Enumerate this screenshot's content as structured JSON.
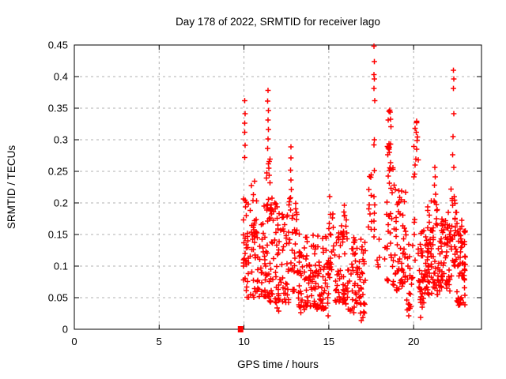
{
  "page": {
    "background": "#ffffff"
  },
  "chart_data": {
    "type": "scatter",
    "title": "Day 178 of 2022, SRMTID for receiver lago",
    "xlabel": "GPS time / hours",
    "ylabel": "SRMTID / TECUs",
    "xlim": [
      0,
      24
    ],
    "ylim": [
      0,
      0.45
    ],
    "xticks": [
      0,
      5,
      10,
      15,
      20
    ],
    "xtick_labels": [
      "0",
      "5",
      "10",
      "15",
      "20"
    ],
    "yticks": [
      0,
      0.05,
      0.1,
      0.15,
      0.2,
      0.25,
      0.3,
      0.35,
      0.4,
      0.45
    ],
    "ytick_labels": [
      "0",
      "0.05",
      "0.1",
      "0.15",
      "0.2",
      "0.25",
      "0.3",
      "0.35",
      "0.4",
      "0.45"
    ],
    "grid": true,
    "legend": "none",
    "marker": "plus",
    "marker_color": "#ff0000",
    "grid_color": "#b0b0b0",
    "axis_color": "#000000",
    "data_time_range_hours": [
      9.8,
      23.1
    ],
    "zero_point": {
      "x": 9.8,
      "y": 0.0
    },
    "points": [
      [
        10.04,
        0.362
      ],
      [
        10.06,
        0.341
      ],
      [
        10.05,
        0.326
      ],
      [
        10.04,
        0.312
      ],
      [
        10.07,
        0.291
      ],
      [
        10.05,
        0.272
      ],
      [
        11.42,
        0.378
      ],
      [
        11.4,
        0.361
      ],
      [
        11.43,
        0.346
      ],
      [
        11.41,
        0.331
      ],
      [
        11.44,
        0.316
      ],
      [
        11.42,
        0.301
      ],
      [
        11.4,
        0.286
      ],
      [
        11.45,
        0.262
      ],
      [
        12.76,
        0.289
      ],
      [
        12.78,
        0.271
      ],
      [
        12.75,
        0.252
      ],
      [
        12.77,
        0.236
      ],
      [
        12.79,
        0.221
      ],
      [
        12.74,
        0.208
      ],
      [
        17.67,
        0.448
      ],
      [
        17.68,
        0.424
      ],
      [
        17.66,
        0.403
      ],
      [
        17.69,
        0.396
      ],
      [
        17.67,
        0.381
      ],
      [
        17.7,
        0.362
      ],
      [
        17.68,
        0.3
      ],
      [
        17.66,
        0.292
      ],
      [
        17.69,
        0.251
      ],
      [
        17.67,
        0.21
      ],
      [
        17.7,
        0.197
      ],
      [
        17.68,
        0.184
      ],
      [
        17.66,
        0.171
      ],
      [
        17.69,
        0.158
      ],
      [
        17.67,
        0.146
      ],
      [
        20.18,
        0.327
      ],
      [
        20.15,
        0.312
      ],
      [
        20.21,
        0.299
      ],
      [
        20.17,
        0.285
      ],
      [
        21.25,
        0.256
      ],
      [
        21.28,
        0.241
      ],
      [
        21.23,
        0.228
      ],
      [
        21.3,
        0.214
      ],
      [
        21.26,
        0.201
      ],
      [
        22.35,
        0.41
      ],
      [
        22.36,
        0.396
      ],
      [
        22.34,
        0.381
      ],
      [
        22.37,
        0.341
      ],
      [
        22.33,
        0.305
      ],
      [
        22.3,
        0.276
      ],
      [
        22.38,
        0.256
      ],
      [
        22.2,
        0.222
      ],
      [
        11.95,
        0.034
      ],
      [
        12.05,
        0.029
      ],
      [
        13.35,
        0.026
      ],
      [
        13.55,
        0.031
      ],
      [
        14.95,
        0.021
      ],
      [
        16.92,
        0.014
      ],
      [
        17.02,
        0.019
      ],
      [
        19.72,
        0.021
      ],
      [
        19.78,
        0.033
      ],
      [
        20.42,
        0.019
      ],
      [
        20.5,
        0.035
      ]
    ],
    "cluster_format": [
      "x_start_hours",
      "x_end_hours",
      "y_min_tecus",
      "y_max_tecus",
      "point_count",
      "low_bias_exponent"
    ],
    "noise_clusters": [
      [
        9.95,
        10.15,
        0.06,
        0.21,
        22,
        1.2
      ],
      [
        10.15,
        11.25,
        0.05,
        0.205,
        70,
        1.5
      ],
      [
        10.4,
        10.75,
        0.15,
        0.238,
        9,
        1.0
      ],
      [
        11.28,
        11.68,
        0.17,
        0.272,
        18,
        1.2
      ],
      [
        11.25,
        12.65,
        0.042,
        0.2,
        100,
        1.6
      ],
      [
        12.65,
        13.15,
        0.06,
        0.21,
        30,
        1.4
      ],
      [
        13.15,
        14.25,
        0.035,
        0.155,
        80,
        1.4
      ],
      [
        14.25,
        15.0,
        0.032,
        0.152,
        55,
        1.4
      ],
      [
        15.0,
        15.35,
        0.08,
        0.212,
        20,
        1.0
      ],
      [
        15.35,
        16.1,
        0.04,
        0.165,
        55,
        1.4
      ],
      [
        15.75,
        16.05,
        0.16,
        0.2,
        6,
        1.0
      ],
      [
        16.1,
        17.15,
        0.025,
        0.148,
        75,
        1.4
      ],
      [
        17.3,
        17.55,
        0.13,
        0.252,
        11,
        1.0
      ],
      [
        17.8,
        18.35,
        0.09,
        0.165,
        7,
        1.0
      ],
      [
        18.45,
        18.68,
        0.272,
        0.347,
        15,
        0.9
      ],
      [
        18.4,
        18.8,
        0.07,
        0.268,
        30,
        1.3
      ],
      [
        18.8,
        19.55,
        0.06,
        0.235,
        60,
        1.5
      ],
      [
        19.55,
        19.95,
        0.03,
        0.135,
        22,
        1.2
      ],
      [
        20.0,
        20.3,
        0.1,
        0.33,
        16,
        1.3
      ],
      [
        20.3,
        20.65,
        0.04,
        0.185,
        30,
        1.3
      ],
      [
        20.65,
        21.45,
        0.055,
        0.205,
        80,
        1.5
      ],
      [
        21.45,
        22.25,
        0.06,
        0.185,
        70,
        1.5
      ],
      [
        22.25,
        22.55,
        0.1,
        0.21,
        25,
        1.3
      ],
      [
        22.55,
        23.05,
        0.038,
        0.175,
        60,
        1.3
      ]
    ],
    "seed": 178
  }
}
